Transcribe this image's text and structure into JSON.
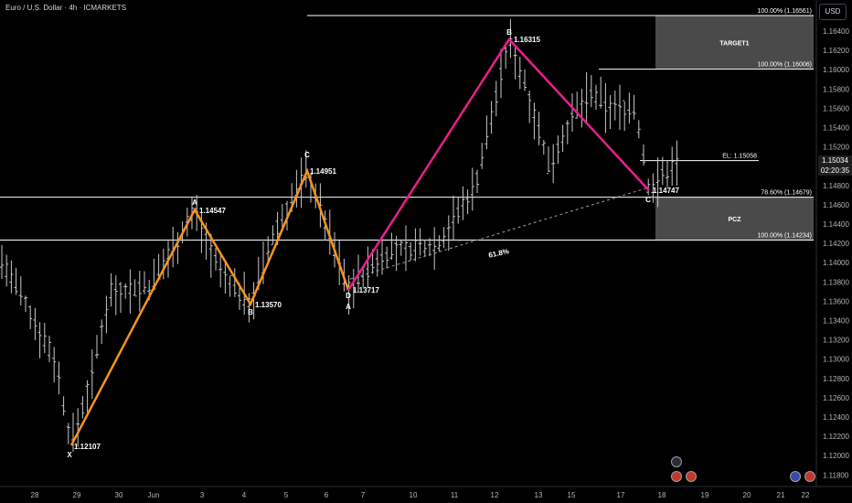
{
  "header": {
    "symbol_title": "Euro / U.S. Dollar · 4h · ICMARKETS",
    "currency": "USD"
  },
  "price_axis": {
    "ticks": [
      "1.16400",
      "1.16200",
      "1.16000",
      "1.15800",
      "1.15600",
      "1.15400",
      "1.15200",
      "1.15000",
      "1.14800",
      "1.14600",
      "1.14400",
      "1.14200",
      "1.14000",
      "1.13800",
      "1.13600",
      "1.13400",
      "1.13200",
      "1.13000",
      "1.12800",
      "1.12600",
      "1.12400",
      "1.12200",
      "1.12000",
      "1.11800"
    ],
    "current_price": "1.15034",
    "countdown": "02:20:35"
  },
  "time_axis": {
    "ticks": [
      "28",
      "29",
      "30",
      "Jun",
      "3",
      "4",
      "5",
      "6",
      "7",
      "10",
      "11",
      "12",
      "13",
      "15",
      "17",
      "18",
      "19",
      "20",
      "21",
      "22"
    ]
  },
  "chart_data": {
    "type": "candlestick",
    "instrument": "EURUSD",
    "interval": "4h",
    "ylim": [
      1.1175,
      1.1665
    ],
    "harmonic_1": {
      "color": "#f7931e",
      "points": [
        {
          "label": "X",
          "value": "1.12107"
        },
        {
          "label": "A",
          "value": "1.14547"
        },
        {
          "label": "B",
          "value": "1.13570"
        },
        {
          "label": "C",
          "value": "1.14951"
        },
        {
          "label": "D",
          "value": "1.13717"
        }
      ]
    },
    "harmonic_2": {
      "color": "#e91e8c",
      "points": [
        {
          "label": "A",
          "value": "1.13717"
        },
        {
          "label": "B",
          "value": "1.16315"
        },
        {
          "label": "C",
          "value": "1.14747"
        }
      ]
    },
    "fib_label": "61.8%",
    "levels": [
      {
        "label": "100.00% (1.16561)",
        "price": 1.16561
      },
      {
        "label": "100.00% (1.16006)",
        "price": 1.16006
      },
      {
        "label": "EL: 1.15058",
        "price": 1.15058
      },
      {
        "label": "78.60% (1.14679)",
        "price": 1.14679
      },
      {
        "label": "100.00% (1.14234)",
        "price": 1.14234
      }
    ],
    "zones": [
      {
        "title": "TARGET1",
        "top": 1.16561,
        "bottom": 1.16006
      },
      {
        "title": "PCZ",
        "top": 1.14679,
        "bottom": 1.14234
      }
    ]
  }
}
